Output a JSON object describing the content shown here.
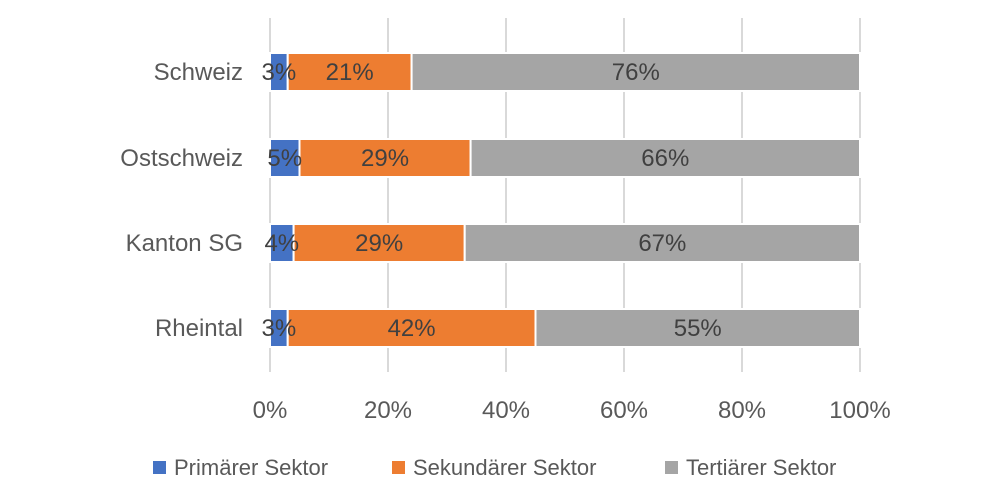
{
  "chart_data": {
    "type": "bar",
    "orientation": "horizontal",
    "stacked": "percent",
    "categories": [
      "Schweiz",
      "Ostschweiz",
      "Kanton SG",
      "Rheintal"
    ],
    "series": [
      {
        "name": "Primärer Sektor",
        "color": "#4472C4",
        "values": [
          3,
          5,
          4,
          3
        ],
        "labels": [
          "3%",
          "5%",
          "4%",
          "3%"
        ]
      },
      {
        "name": "Sekundärer Sektor",
        "color": "#ED7D31",
        "values": [
          21,
          29,
          29,
          42
        ],
        "labels": [
          "21%",
          "29%",
          "29%",
          "42%"
        ]
      },
      {
        "name": "Tertiärer Sektor",
        "color": "#A5A5A5",
        "values": [
          76,
          66,
          67,
          55
        ],
        "labels": [
          "76%",
          "66%",
          "67%",
          "55%"
        ]
      }
    ],
    "xlim": [
      0,
      100
    ],
    "x_ticks": [
      0,
      20,
      40,
      60,
      80,
      100
    ],
    "x_tick_labels": [
      "0%",
      "20%",
      "40%",
      "60%",
      "80%",
      "100%"
    ],
    "grid": "vertical",
    "legend": "bottom",
    "title": "",
    "xlabel": "",
    "ylabel": ""
  }
}
